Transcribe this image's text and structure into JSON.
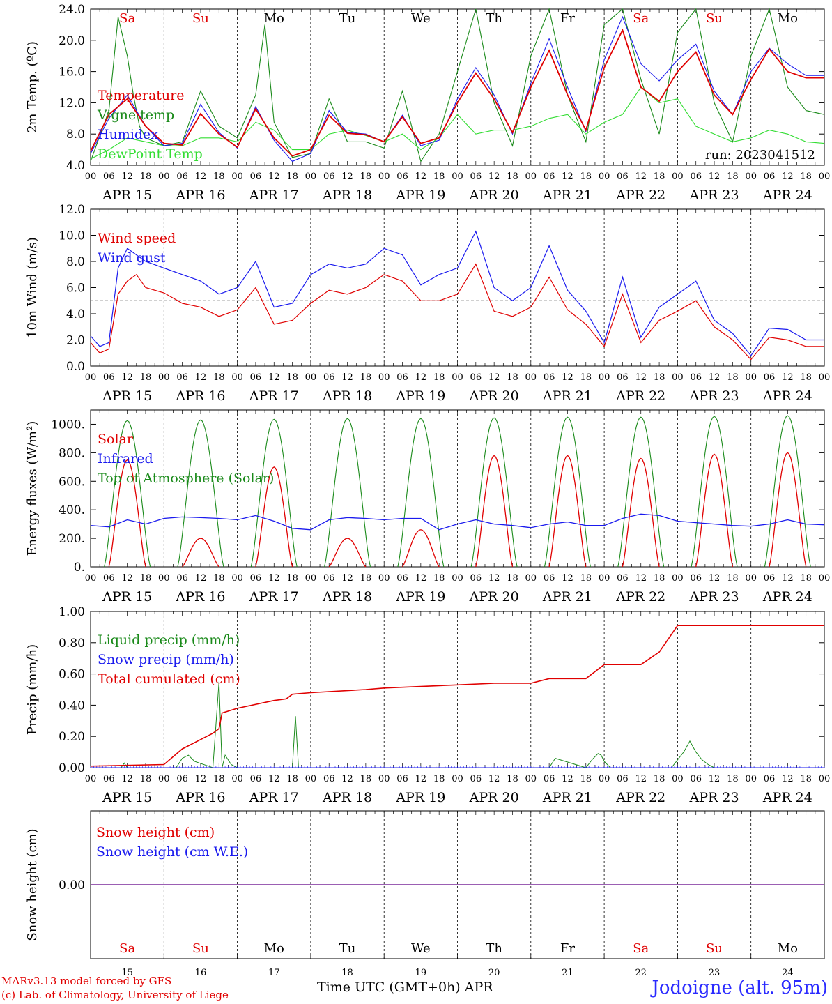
{
  "figure": {
    "run_label": "run: 2023041512",
    "station": "Jodoigne (alt. 95m)",
    "credit_line1": "MARv3.13 model forced by GFS",
    "credit_line2": "(c) Lab. of Climatology, University of Liege",
    "x_title": "Time UTC (GMT+0h) APR",
    "colors": {
      "red": "#e00000",
      "green": "#1a8a1a",
      "blue": "#1a1aee",
      "lightgreen": "#33dd33",
      "purple": "#7a2a9a"
    }
  },
  "chart_data": [
    {
      "type": "line",
      "ylabel": "2m Temp. (ºC)",
      "ylim": [
        4,
        24
      ],
      "yticks": [
        "4.0",
        "8.0",
        "12.0",
        "16.0",
        "20.0",
        "24.0"
      ],
      "ytick_values": [
        4,
        8,
        12,
        16,
        20,
        24
      ],
      "hours_per_tick": 6,
      "hour_tick_labels": [
        "00",
        "06",
        "12",
        "18"
      ],
      "day_labels": [
        "APR 15",
        "APR 16",
        "APR 17",
        "APR 18",
        "APR 19",
        "APR 20",
        "APR 21",
        "APR 22",
        "APR 23",
        "APR 24"
      ],
      "weekday_labels": [
        {
          "text": "Sa",
          "color": "#e00000"
        },
        {
          "text": "Su",
          "color": "#e00000"
        },
        {
          "text": "Mo",
          "color": "#000000"
        },
        {
          "text": "Tu",
          "color": "#000000"
        },
        {
          "text": "We",
          "color": "#000000"
        },
        {
          "text": "Th",
          "color": "#000000"
        },
        {
          "text": "Fr",
          "color": "#000000"
        },
        {
          "text": "Sa",
          "color": "#e00000"
        },
        {
          "text": "Su",
          "color": "#e00000"
        },
        {
          "text": "Mo",
          "color": "#000000"
        }
      ],
      "series": [
        {
          "name": "Temperature",
          "color": "#e00000",
          "x": [
            0,
            6,
            12,
            18,
            24,
            30,
            36,
            42,
            48,
            54,
            60,
            66,
            72,
            78,
            84,
            90,
            96,
            102,
            108,
            114,
            120,
            126,
            132,
            138,
            144,
            150,
            156,
            162,
            168,
            174,
            180,
            186,
            192,
            198,
            204,
            210,
            216,
            222,
            228,
            234,
            240
          ],
          "y": [
            5.8,
            10.5,
            12.5,
            9.0,
            6.8,
            6.6,
            10.6,
            8.0,
            6.3,
            11.2,
            7.5,
            5.2,
            6.0,
            10.4,
            8.1,
            7.9,
            7.0,
            10.2,
            6.8,
            7.5,
            12.0,
            15.8,
            12.5,
            8.2,
            14.0,
            18.7,
            13.0,
            8.5,
            16.5,
            21.3,
            14.0,
            12.2,
            16.0,
            18.5,
            13.0,
            10.5,
            15.0,
            18.9,
            16.0,
            15.2,
            15.2
          ]
        },
        {
          "name": "Vigne temp",
          "color": "#1a8a1a",
          "x": [
            0,
            6,
            9,
            12,
            14,
            16,
            18,
            24,
            30,
            36,
            42,
            48,
            54,
            57,
            60,
            66,
            72,
            78,
            84,
            90,
            96,
            102,
            108,
            114,
            120,
            126,
            132,
            138,
            144,
            150,
            156,
            162,
            168,
            174,
            180,
            186,
            192,
            198,
            204,
            210,
            216,
            222,
            228,
            234,
            240
          ],
          "y": [
            4.5,
            11.0,
            23.0,
            18.0,
            13.0,
            9.0,
            7.5,
            6.5,
            7.0,
            13.5,
            9.0,
            7.5,
            13.0,
            22.0,
            9.5,
            5.0,
            5.5,
            12.5,
            7.0,
            7.0,
            6.2,
            13.5,
            4.5,
            8.0,
            16.0,
            24.0,
            12.0,
            6.5,
            18.0,
            24.5,
            13.0,
            7.0,
            22.0,
            24.5,
            15.0,
            8.0,
            21.0,
            24.0,
            12.0,
            7.0,
            18.0,
            24.0,
            14.0,
            11.0,
            10.5
          ]
        },
        {
          "name": "Humidex",
          "color": "#1a1aee",
          "x": [
            0,
            6,
            12,
            18,
            24,
            30,
            36,
            42,
            48,
            54,
            60,
            66,
            72,
            78,
            84,
            90,
            96,
            102,
            108,
            114,
            120,
            126,
            132,
            138,
            144,
            150,
            156,
            162,
            168,
            174,
            180,
            186,
            192,
            198,
            204,
            210,
            216,
            222,
            228,
            234,
            240
          ],
          "y": [
            5.5,
            10.0,
            13.0,
            9.0,
            6.5,
            6.8,
            11.8,
            8.2,
            6.2,
            11.5,
            7.2,
            4.5,
            5.5,
            11.0,
            8.2,
            8.0,
            7.0,
            10.4,
            6.5,
            7.2,
            12.5,
            16.5,
            13.0,
            8.0,
            14.5,
            20.2,
            14.0,
            8.3,
            17.5,
            23.0,
            17.0,
            14.8,
            17.5,
            19.5,
            13.5,
            10.5,
            16.0,
            19.0,
            17.0,
            15.5,
            15.5
          ]
        },
        {
          "name": "DewPoint Temp",
          "color": "#33dd33",
          "x": [
            0,
            6,
            12,
            18,
            24,
            30,
            36,
            42,
            48,
            54,
            60,
            66,
            72,
            78,
            84,
            90,
            96,
            102,
            108,
            114,
            120,
            126,
            132,
            138,
            144,
            150,
            156,
            162,
            168,
            174,
            180,
            186,
            192,
            198,
            204,
            210,
            216,
            222,
            228,
            234,
            240
          ],
          "y": [
            4.8,
            6.0,
            7.5,
            7.0,
            6.5,
            6.5,
            7.5,
            7.5,
            7.0,
            9.5,
            8.5,
            6.0,
            6.0,
            8.0,
            8.5,
            7.8,
            7.0,
            8.0,
            6.0,
            7.5,
            10.5,
            8.0,
            8.5,
            8.5,
            9.0,
            10.0,
            10.5,
            8.0,
            9.5,
            10.5,
            14.0,
            12.0,
            12.5,
            9.0,
            8.0,
            7.0,
            7.5,
            8.5,
            8.0,
            7.0,
            6.8
          ]
        }
      ]
    },
    {
      "type": "line",
      "ylabel": "10m Wind (m/s)",
      "ylim": [
        0,
        12
      ],
      "yticks": [
        "0.0",
        "2.0",
        "4.0",
        "6.0",
        "8.0",
        "10.0",
        "12.0"
      ],
      "ytick_values": [
        0,
        2,
        4,
        6,
        8,
        10,
        12
      ],
      "reference_line": 5.0,
      "series": [
        {
          "name": "Wind speed",
          "color": "#e00000",
          "x": [
            0,
            3,
            6,
            9,
            12,
            15,
            18,
            24,
            30,
            36,
            42,
            48,
            54,
            60,
            66,
            72,
            78,
            84,
            90,
            96,
            102,
            108,
            114,
            120,
            126,
            132,
            138,
            144,
            150,
            156,
            162,
            168,
            174,
            180,
            186,
            192,
            198,
            204,
            210,
            216,
            222,
            228,
            234,
            240
          ],
          "y": [
            1.8,
            1.0,
            1.3,
            5.5,
            6.5,
            7.0,
            6.0,
            5.6,
            4.8,
            4.5,
            3.8,
            4.3,
            6.0,
            3.2,
            3.5,
            4.8,
            5.8,
            5.5,
            6.0,
            7.0,
            6.5,
            5.0,
            5.0,
            5.5,
            7.8,
            4.2,
            3.8,
            4.5,
            6.8,
            4.3,
            3.2,
            1.5,
            5.5,
            1.8,
            3.5,
            4.2,
            5.0,
            3.0,
            2.0,
            0.5,
            2.2,
            2.0,
            1.5,
            1.5
          ]
        },
        {
          "name": "Wind gust",
          "color": "#1a1aee",
          "x": [
            0,
            3,
            6,
            9,
            12,
            15,
            18,
            24,
            30,
            36,
            42,
            48,
            54,
            60,
            66,
            72,
            78,
            84,
            90,
            96,
            102,
            108,
            114,
            120,
            126,
            132,
            138,
            144,
            150,
            156,
            162,
            168,
            174,
            180,
            186,
            192,
            198,
            204,
            210,
            216,
            222,
            228,
            234,
            240
          ],
          "y": [
            2.3,
            1.5,
            1.8,
            7.5,
            9.0,
            8.5,
            8.0,
            7.5,
            7.0,
            6.5,
            5.5,
            6.0,
            8.0,
            4.5,
            4.8,
            7.0,
            7.8,
            7.5,
            7.8,
            9.0,
            8.5,
            6.2,
            7.0,
            7.5,
            10.3,
            6.0,
            5.0,
            6.0,
            9.2,
            5.8,
            4.2,
            1.8,
            6.8,
            2.2,
            4.5,
            5.5,
            6.5,
            3.5,
            2.5,
            0.8,
            2.9,
            2.8,
            2.0,
            2.0
          ]
        }
      ]
    },
    {
      "type": "line",
      "ylabel": "Energy fluxes (W/m²)",
      "ylim": [
        0,
        1100
      ],
      "yticks": [
        "0.",
        "200.",
        "400.",
        "600.",
        "800.",
        "1000."
      ],
      "ytick_values": [
        0,
        200,
        400,
        600,
        800,
        1000
      ],
      "series": [
        {
          "name": "Solar",
          "color": "#e00000",
          "peaks": [
            750,
            200,
            700,
            200,
            260,
            780,
            780,
            760,
            790,
            800
          ],
          "peak_offset_x": [
            0,
            0,
            0,
            0,
            0,
            0,
            0,
            0,
            0,
            0
          ]
        },
        {
          "name": "Infrared",
          "color": "#1a1aee",
          "x": [
            0,
            6,
            12,
            18,
            24,
            30,
            36,
            42,
            48,
            54,
            60,
            66,
            72,
            78,
            84,
            90,
            96,
            102,
            108,
            114,
            120,
            126,
            132,
            138,
            144,
            150,
            156,
            162,
            168,
            174,
            180,
            186,
            192,
            198,
            204,
            210,
            216,
            222,
            228,
            234,
            240
          ],
          "y": [
            290,
            280,
            330,
            300,
            340,
            350,
            345,
            340,
            330,
            360,
            320,
            270,
            260,
            330,
            345,
            340,
            330,
            340,
            340,
            260,
            300,
            330,
            300,
            290,
            275,
            300,
            315,
            290,
            290,
            340,
            370,
            360,
            320,
            310,
            300,
            290,
            285,
            300,
            330,
            300,
            295
          ]
        },
        {
          "name": "Top of Atmosphere (Solar)",
          "color": "#1a8a1a",
          "peaks": [
            1025,
            1030,
            1035,
            1040,
            1040,
            1045,
            1050,
            1050,
            1055,
            1060
          ]
        }
      ]
    },
    {
      "type": "line",
      "ylabel": "Precip (mm/h)",
      "ylim": [
        0,
        1.0
      ],
      "yticks": [
        "0.00",
        "0.20",
        "0.40",
        "0.60",
        "0.80",
        "1.00"
      ],
      "ytick_values": [
        0,
        0.2,
        0.4,
        0.6,
        0.8,
        1.0
      ],
      "series": [
        {
          "name": "Liquid precip (mm/h)",
          "color": "#1a8a1a",
          "x": [
            10,
            11,
            12,
            28,
            30,
            32,
            34,
            40,
            42,
            43,
            44,
            46,
            48,
            66,
            67,
            68,
            70,
            150,
            152,
            162,
            164,
            166,
            167,
            168,
            170,
            190,
            192,
            194,
            196,
            198,
            200,
            202,
            204
          ],
          "y": [
            0,
            0.03,
            0,
            0,
            0.06,
            0.08,
            0.04,
            0,
            0.55,
            0,
            0.08,
            0.02,
            0,
            0,
            0.33,
            0,
            0,
            0,
            0.06,
            0,
            0.05,
            0.09,
            0.08,
            0.04,
            0,
            0,
            0.05,
            0.1,
            0.17,
            0.1,
            0.05,
            0.02,
            0
          ]
        },
        {
          "name": "Snow precip (mm/h)",
          "color": "#1a1aee",
          "x": [
            0,
            240
          ],
          "y": [
            0,
            0
          ]
        },
        {
          "name": "Total cumulated (cm)",
          "color": "#e00000",
          "x": [
            0,
            24,
            30,
            36,
            40,
            42,
            43,
            48,
            60,
            64,
            66,
            72,
            90,
            96,
            120,
            132,
            144,
            150,
            162,
            168,
            180,
            186,
            192,
            240
          ],
          "y": [
            0.01,
            0.02,
            0.12,
            0.18,
            0.22,
            0.25,
            0.35,
            0.38,
            0.43,
            0.44,
            0.47,
            0.48,
            0.5,
            0.51,
            0.53,
            0.54,
            0.54,
            0.57,
            0.57,
            0.66,
            0.66,
            0.74,
            0.91,
            0.91
          ]
        }
      ]
    },
    {
      "type": "line",
      "ylabel": "Snow height (cm)",
      "ylim": [
        -1,
        1
      ],
      "yticks": [
        "0.00"
      ],
      "ytick_values": [
        0
      ],
      "day_numbers": [
        "15",
        "16",
        "17",
        "18",
        "19",
        "20",
        "21",
        "22",
        "23",
        "24"
      ],
      "series": [
        {
          "name": "Snow height (cm)",
          "color": "#e00000",
          "x": [
            0,
            240
          ],
          "y": [
            0,
            0
          ]
        },
        {
          "name": "Snow height (cm W.E.)",
          "color": "#1a1aee",
          "x": [
            0,
            240
          ],
          "y": [
            0,
            0
          ]
        }
      ]
    }
  ]
}
